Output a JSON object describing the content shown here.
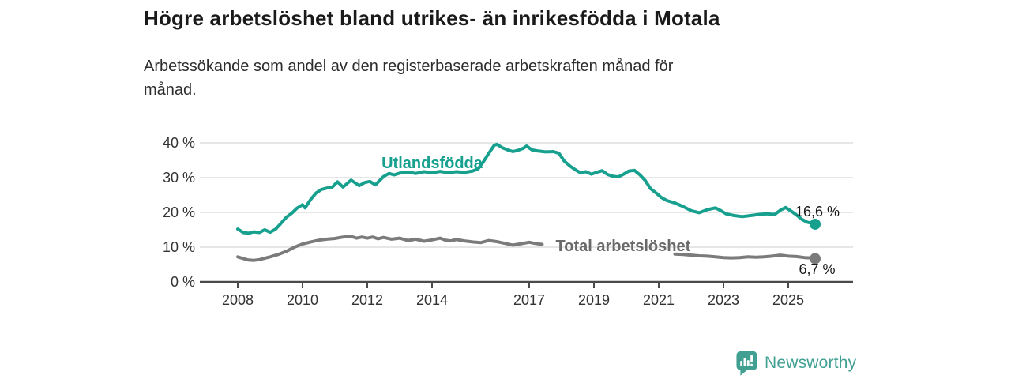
{
  "header": {
    "title": "Högre arbetslöshet bland utrikes- än inrikesfödda i Motala",
    "subtitle_lines": [
      "Arbetssökande som andel av den registerbaserade arbetskraften månad för",
      "månad."
    ]
  },
  "branding": {
    "logo_text": "Newsworthy",
    "logo_color": "#42a093"
  },
  "colors": {
    "accent_teal": "#17a08e",
    "line_gray": "#7b7b7b",
    "label_gray": "#6a6a6a",
    "axis": "#4a4a4a",
    "gridline": "#d8d8d8",
    "text_dark": "#1a1a1a"
  },
  "chart_data": {
    "type": "line",
    "title": "Högre arbetslöshet bland utrikes- än inrikesfödda i Motala",
    "subtitle": "Arbetssökande som andel av den registerbaserade arbetskraften månad för månad.",
    "xlabel": "",
    "ylabel": "",
    "unit": "%",
    "grid": "horizontal",
    "legend_position": "inline-labels",
    "x_range": [
      2008,
      2025.83
    ],
    "ylim": [
      0,
      42
    ],
    "y_axis": {
      "ticks": [
        {
          "value": 0,
          "label": "0 %"
        },
        {
          "value": 10,
          "label": "10 %"
        },
        {
          "value": 20,
          "label": "20 %"
        },
        {
          "value": 30,
          "label": "30 %"
        },
        {
          "value": 40,
          "label": "40 %"
        }
      ]
    },
    "x_axis": {
      "ticks": [
        {
          "value": 2008,
          "label": "2008"
        },
        {
          "value": 2010,
          "label": "2010"
        },
        {
          "value": 2012,
          "label": "2012"
        },
        {
          "value": 2014,
          "label": "2014"
        },
        {
          "value": 2017,
          "label": "2017"
        },
        {
          "value": 2019,
          "label": "2019"
        },
        {
          "value": 2021,
          "label": "2021"
        },
        {
          "value": 2023,
          "label": "2023"
        },
        {
          "value": 2025,
          "label": "2025"
        }
      ]
    },
    "series": [
      {
        "id": "total",
        "name": "Total arbetslöshet",
        "color": "#7b7b7b",
        "label": {
          "text": "Total arbetslöshet",
          "at": [
            2019.9,
            8.9
          ],
          "color": "#6a6a6a"
        },
        "end_label": {
          "text": "6,7 %",
          "at": [
            2025.33,
            2.3
          ]
        },
        "end_value": 6.7,
        "segments": [
          [
            [
              2008.0,
              7.2
            ],
            [
              2008.17,
              6.7
            ],
            [
              2008.33,
              6.3
            ],
            [
              2008.5,
              6.2
            ],
            [
              2008.67,
              6.4
            ],
            [
              2008.83,
              6.8
            ],
            [
              2009.0,
              7.2
            ],
            [
              2009.25,
              7.9
            ],
            [
              2009.5,
              8.8
            ],
            [
              2009.75,
              10.0
            ],
            [
              2010.0,
              10.9
            ],
            [
              2010.25,
              11.5
            ],
            [
              2010.5,
              12.0
            ],
            [
              2010.75,
              12.3
            ],
            [
              2011.0,
              12.5
            ],
            [
              2011.25,
              12.9
            ],
            [
              2011.5,
              13.1
            ],
            [
              2011.67,
              12.6
            ],
            [
              2011.83,
              12.9
            ],
            [
              2012.0,
              12.6
            ],
            [
              2012.17,
              12.9
            ],
            [
              2012.33,
              12.4
            ],
            [
              2012.5,
              12.8
            ],
            [
              2012.75,
              12.3
            ],
            [
              2013.0,
              12.6
            ],
            [
              2013.25,
              11.9
            ],
            [
              2013.5,
              12.3
            ],
            [
              2013.75,
              11.7
            ],
            [
              2014.0,
              12.1
            ],
            [
              2014.25,
              12.6
            ],
            [
              2014.42,
              12.0
            ],
            [
              2014.58,
              11.8
            ],
            [
              2014.75,
              12.2
            ],
            [
              2015.0,
              11.8
            ],
            [
              2015.25,
              11.5
            ],
            [
              2015.5,
              11.3
            ],
            [
              2015.75,
              11.9
            ],
            [
              2016.0,
              11.6
            ],
            [
              2016.25,
              11.1
            ],
            [
              2016.5,
              10.6
            ],
            [
              2016.75,
              11.0
            ],
            [
              2017.0,
              11.4
            ],
            [
              2017.17,
              11.1
            ],
            [
              2017.4,
              10.8
            ]
          ],
          [
            [
              2021.5,
              8.0
            ],
            [
              2021.75,
              7.9
            ],
            [
              2022.0,
              7.7
            ],
            [
              2022.25,
              7.5
            ],
            [
              2022.5,
              7.4
            ],
            [
              2022.75,
              7.2
            ],
            [
              2023.0,
              7.0
            ],
            [
              2023.25,
              6.9
            ],
            [
              2023.5,
              7.0
            ],
            [
              2023.75,
              7.2
            ],
            [
              2024.0,
              7.1
            ],
            [
              2024.25,
              7.2
            ],
            [
              2024.5,
              7.4
            ],
            [
              2024.75,
              7.7
            ],
            [
              2025.0,
              7.4
            ],
            [
              2025.25,
              7.3
            ],
            [
              2025.5,
              7.0
            ],
            [
              2025.7,
              6.9
            ],
            [
              2025.83,
              6.7
            ]
          ]
        ]
      },
      {
        "id": "utlandsfodda",
        "name": "Utlandsfödda",
        "color": "#17a08e",
        "label": {
          "text": "Utlandsfödda",
          "at": [
            2014.0,
            32.7
          ],
          "color": "#17a08e"
        },
        "end_label": {
          "text": "16,6 %",
          "at": [
            2025.22,
            18.9
          ]
        },
        "end_value": 16.6,
        "segments": [
          [
            [
              2008.0,
              15.2
            ],
            [
              2008.17,
              14.2
            ],
            [
              2008.33,
              14.0
            ],
            [
              2008.5,
              14.4
            ],
            [
              2008.67,
              14.2
            ],
            [
              2008.83,
              15.0
            ],
            [
              2009.0,
              14.3
            ],
            [
              2009.17,
              15.2
            ],
            [
              2009.33,
              16.8
            ],
            [
              2009.5,
              18.6
            ],
            [
              2009.67,
              19.8
            ],
            [
              2009.83,
              21.2
            ],
            [
              2010.0,
              22.2
            ],
            [
              2010.08,
              21.3
            ],
            [
              2010.25,
              23.7
            ],
            [
              2010.42,
              25.6
            ],
            [
              2010.58,
              26.6
            ],
            [
              2010.75,
              27.0
            ],
            [
              2010.92,
              27.3
            ],
            [
              2011.08,
              28.8
            ],
            [
              2011.25,
              27.3
            ],
            [
              2011.5,
              29.3
            ],
            [
              2011.75,
              27.7
            ],
            [
              2011.92,
              28.6
            ],
            [
              2012.08,
              28.9
            ],
            [
              2012.25,
              27.9
            ],
            [
              2012.5,
              30.3
            ],
            [
              2012.67,
              31.2
            ],
            [
              2012.83,
              30.8
            ],
            [
              2013.0,
              31.3
            ],
            [
              2013.25,
              31.6
            ],
            [
              2013.5,
              31.2
            ],
            [
              2013.75,
              31.7
            ],
            [
              2014.0,
              31.4
            ],
            [
              2014.25,
              31.8
            ],
            [
              2014.5,
              31.4
            ],
            [
              2014.75,
              31.7
            ],
            [
              2015.0,
              31.5
            ],
            [
              2015.25,
              31.9
            ],
            [
              2015.42,
              32.5
            ],
            [
              2015.58,
              34.5
            ],
            [
              2015.75,
              37.0
            ],
            [
              2015.92,
              39.3
            ],
            [
              2016.0,
              39.6
            ],
            [
              2016.17,
              38.6
            ],
            [
              2016.33,
              38.0
            ],
            [
              2016.5,
              37.5
            ],
            [
              2016.67,
              37.9
            ],
            [
              2016.83,
              38.5
            ],
            [
              2016.92,
              39.1
            ],
            [
              2017.08,
              38.0
            ],
            [
              2017.25,
              37.7
            ],
            [
              2017.5,
              37.4
            ],
            [
              2017.75,
              37.5
            ],
            [
              2017.92,
              37.0
            ],
            [
              2018.08,
              34.8
            ],
            [
              2018.25,
              33.4
            ],
            [
              2018.42,
              32.3
            ],
            [
              2018.58,
              31.4
            ],
            [
              2018.75,
              31.7
            ],
            [
              2018.92,
              31.0
            ],
            [
              2019.08,
              31.5
            ],
            [
              2019.25,
              32.0
            ],
            [
              2019.42,
              30.9
            ],
            [
              2019.58,
              30.4
            ],
            [
              2019.75,
              30.2
            ],
            [
              2019.92,
              31.0
            ],
            [
              2020.08,
              31.9
            ],
            [
              2020.25,
              32.1
            ],
            [
              2020.42,
              30.8
            ],
            [
              2020.58,
              29.2
            ],
            [
              2020.75,
              26.8
            ],
            [
              2020.92,
              25.6
            ],
            [
              2021.08,
              24.3
            ],
            [
              2021.25,
              23.4
            ],
            [
              2021.5,
              22.7
            ],
            [
              2021.75,
              21.7
            ],
            [
              2022.0,
              20.5
            ],
            [
              2022.25,
              19.9
            ],
            [
              2022.5,
              20.8
            ],
            [
              2022.75,
              21.3
            ],
            [
              2022.92,
              20.5
            ],
            [
              2023.08,
              19.6
            ],
            [
              2023.33,
              19.1
            ],
            [
              2023.58,
              18.8
            ],
            [
              2023.83,
              19.1
            ],
            [
              2024.08,
              19.4
            ],
            [
              2024.33,
              19.6
            ],
            [
              2024.58,
              19.4
            ],
            [
              2024.75,
              20.6
            ],
            [
              2024.92,
              21.4
            ],
            [
              2025.08,
              20.4
            ],
            [
              2025.25,
              19.3
            ],
            [
              2025.42,
              18.0
            ],
            [
              2025.58,
              17.2
            ],
            [
              2025.7,
              16.9
            ],
            [
              2025.83,
              16.6
            ]
          ]
        ]
      }
    ]
  }
}
